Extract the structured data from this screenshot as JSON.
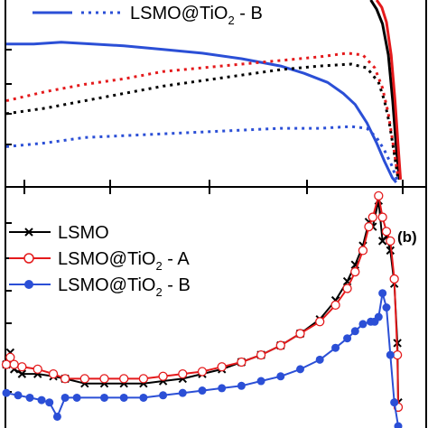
{
  "chart_data": [
    {
      "type": "line",
      "panel": "top",
      "xlim": [
        0,
        100
      ],
      "ylim": [
        0,
        100
      ],
      "legend": {
        "placement": "top-left",
        "entries": [
          {
            "text": "LSMO@TiO",
            "subscript": "2",
            "suffix": " - B"
          }
        ]
      },
      "series": [
        {
          "color": "#000000",
          "dash": "solid",
          "points": [
            [
              93,
              100
            ],
            [
              94.5,
              95
            ],
            [
              96,
              87
            ],
            [
              97.5,
              70
            ],
            [
              98.6,
              45
            ],
            [
              99.5,
              20
            ],
            [
              100.3,
              2
            ]
          ]
        },
        {
          "color": "#e41a1c",
          "dash": "solid",
          "points": [
            [
              94.5,
              100
            ],
            [
              95.8,
              96
            ],
            [
              97,
              88
            ],
            [
              98.2,
              70
            ],
            [
              99.2,
              45
            ],
            [
              100,
              20
            ],
            [
              100.6,
              2
            ]
          ]
        },
        {
          "color": "#2b4fd6",
          "dash": "solid",
          "points": [
            [
              0,
              76
            ],
            [
              7,
              76
            ],
            [
              14,
              77
            ],
            [
              22,
              76
            ],
            [
              30,
              75
            ],
            [
              40,
              73
            ],
            [
              50,
              71
            ],
            [
              60,
              68
            ],
            [
              70,
              64
            ],
            [
              76,
              60
            ],
            [
              82,
              55
            ],
            [
              86,
              49
            ],
            [
              89,
              43
            ],
            [
              92,
              33
            ],
            [
              94.5,
              22
            ],
            [
              96.5,
              12
            ],
            [
              98.5,
              3
            ],
            [
              99.5,
              0.5
            ]
          ]
        },
        {
          "color": "#000000",
          "dash": "dotted",
          "points": [
            [
              0,
              38
            ],
            [
              10,
              41
            ],
            [
              20,
              45
            ],
            [
              30,
              49
            ],
            [
              40,
              53
            ],
            [
              50,
              56
            ],
            [
              60,
              59
            ],
            [
              70,
              62
            ],
            [
              80,
              64
            ],
            [
              88,
              65
            ],
            [
              92,
              63
            ],
            [
              95,
              55
            ],
            [
              96.5,
              45
            ],
            [
              97.8,
              32
            ],
            [
              99,
              16
            ],
            [
              100,
              2
            ]
          ]
        },
        {
          "color": "#e41a1c",
          "dash": "dotted",
          "points": [
            [
              0,
              45
            ],
            [
              10,
              50
            ],
            [
              20,
              54
            ],
            [
              30,
              57
            ],
            [
              40,
              61
            ],
            [
              50,
              63
            ],
            [
              60,
              65
            ],
            [
              70,
              67
            ],
            [
              80,
              69
            ],
            [
              87,
              71
            ],
            [
              91,
              70
            ],
            [
              94,
              63
            ],
            [
              96,
              52
            ],
            [
              97.5,
              38
            ],
            [
              98.8,
              20
            ],
            [
              100,
              3
            ]
          ]
        },
        {
          "color": "#2b4fd6",
          "dash": "dotted",
          "points": [
            [
              0,
              20
            ],
            [
              10,
              22
            ],
            [
              20,
              25
            ],
            [
              30,
              26
            ],
            [
              40,
              27
            ],
            [
              50,
              28
            ],
            [
              60,
              29
            ],
            [
              70,
              30
            ],
            [
              80,
              30
            ],
            [
              88,
              31
            ],
            [
              92,
              30
            ],
            [
              94.5,
              25
            ],
            [
              96.5,
              18
            ],
            [
              98.3,
              10
            ],
            [
              99.5,
              3
            ],
            [
              100,
              0.5
            ]
          ]
        }
      ]
    },
    {
      "type": "line",
      "panel": "bottom",
      "panel_label": "(b)",
      "xlim": [
        0,
        100
      ],
      "ylim": [
        0,
        100
      ],
      "legend": {
        "placement": "top-left",
        "entries": [
          {
            "text": "LSMO",
            "subscript": "",
            "suffix": "",
            "color": "#000000",
            "marker": "x"
          },
          {
            "text": "LSMO@TiO",
            "subscript": "2",
            "suffix": " - A",
            "color": "#e41a1c",
            "marker": "open-circle"
          },
          {
            "text": "LSMO@TiO",
            "subscript": "2",
            "suffix": " - B",
            "color": "#2b4fd6",
            "marker": "filled-circle"
          }
        ]
      },
      "series": [
        {
          "color": "#000000",
          "marker": "x",
          "points": [
            [
              0,
              26
            ],
            [
              1,
              31
            ],
            [
              2,
              24
            ],
            [
              4,
              22
            ],
            [
              8,
              22
            ],
            [
              12,
              21
            ],
            [
              15,
              20
            ],
            [
              20,
              18
            ],
            [
              25,
              18
            ],
            [
              30,
              18
            ],
            [
              35,
              18
            ],
            [
              40,
              19
            ],
            [
              45,
              20
            ],
            [
              50,
              22
            ],
            [
              55,
              24
            ],
            [
              60,
              27
            ],
            [
              65,
              30
            ],
            [
              70,
              34
            ],
            [
              75,
              39
            ],
            [
              80,
              45
            ],
            [
              84,
              53
            ],
            [
              87,
              61
            ],
            [
              89,
              68
            ],
            [
              91,
              76
            ],
            [
              92.5,
              86
            ],
            [
              93.5,
              84
            ],
            [
              95,
              95
            ],
            [
              96,
              78
            ],
            [
              97,
              80
            ],
            [
              98,
              74
            ],
            [
              99,
              60
            ],
            [
              99.8,
              35
            ],
            [
              100,
              10
            ]
          ]
        },
        {
          "color": "#e41a1c",
          "marker": "open-circle",
          "points": [
            [
              0,
              26
            ],
            [
              1,
              29
            ],
            [
              2,
              26
            ],
            [
              4,
              25
            ],
            [
              8,
              24
            ],
            [
              12,
              22
            ],
            [
              15,
              20
            ],
            [
              20,
              20
            ],
            [
              25,
              20
            ],
            [
              30,
              20
            ],
            [
              35,
              20
            ],
            [
              40,
              21
            ],
            [
              45,
              22
            ],
            [
              50,
              23
            ],
            [
              55,
              25
            ],
            [
              60,
              27
            ],
            [
              65,
              30
            ],
            [
              70,
              34
            ],
            [
              75,
              39
            ],
            [
              80,
              44
            ],
            [
              84,
              51
            ],
            [
              87,
              58
            ],
            [
              89,
              65
            ],
            [
              91,
              74
            ],
            [
              92.5,
              84
            ],
            [
              93.5,
              88
            ],
            [
              95,
              97
            ],
            [
              96,
              88
            ],
            [
              97,
              82
            ],
            [
              98,
              78
            ],
            [
              99,
              62
            ],
            [
              99.8,
              30
            ],
            [
              100,
              8
            ]
          ]
        },
        {
          "color": "#2b4fd6",
          "marker": "filled-circle",
          "points": [
            [
              0,
              14
            ],
            [
              3,
              13
            ],
            [
              6,
              12
            ],
            [
              9,
              11
            ],
            [
              11,
              10
            ],
            [
              13,
              4
            ],
            [
              15,
              12
            ],
            [
              18,
              12
            ],
            [
              25,
              12
            ],
            [
              30,
              12
            ],
            [
              35,
              12
            ],
            [
              40,
              13
            ],
            [
              45,
              14
            ],
            [
              50,
              15
            ],
            [
              55,
              16
            ],
            [
              60,
              17
            ],
            [
              65,
              19
            ],
            [
              70,
              21
            ],
            [
              75,
              24
            ],
            [
              80,
              28
            ],
            [
              84,
              33
            ],
            [
              87,
              37
            ],
            [
              89,
              40
            ],
            [
              91,
              43
            ],
            [
              93,
              44
            ],
            [
              94,
              44
            ],
            [
              95,
              46
            ],
            [
              96,
              56
            ],
            [
              97,
              50
            ],
            [
              98,
              30
            ],
            [
              99,
              10
            ],
            [
              100,
              0
            ]
          ]
        }
      ]
    }
  ]
}
